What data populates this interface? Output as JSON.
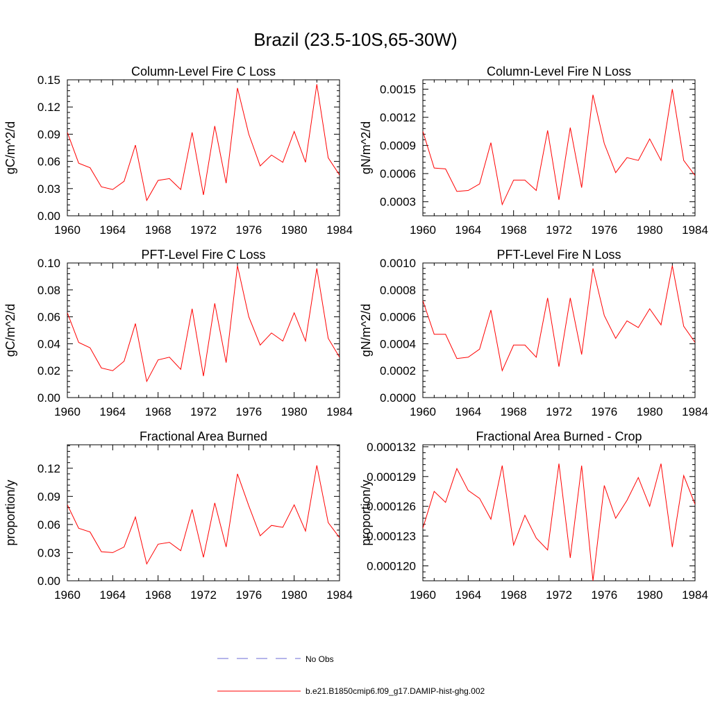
{
  "page_title": "Brazil (23.5-10S,65-30W)",
  "legend": {
    "obs_label": "No Obs",
    "model_label": "b.e21.B1850cmip6.f09_g17.DAMIP-hist-ghg.002",
    "obs_color": "#6b6bd6",
    "model_color": "#ff0000"
  },
  "chart_data": [
    {
      "type": "line",
      "title": "Column-Level Fire C Loss",
      "ylabel": "gC/m^2/d",
      "xlim": [
        1960,
        1984
      ],
      "ylim": [
        0,
        0.15
      ],
      "xticks": [
        "1960",
        "1964",
        "1968",
        "1972",
        "1976",
        "1980",
        "1984"
      ],
      "yticks": [
        "0.00",
        "0.03",
        "0.06",
        "0.09",
        "0.12",
        "0.15"
      ],
      "x": [
        1960,
        1961,
        1962,
        1963,
        1964,
        1965,
        1966,
        1967,
        1968,
        1969,
        1970,
        1971,
        1972,
        1973,
        1974,
        1975,
        1976,
        1977,
        1978,
        1979,
        1980,
        1981,
        1982,
        1983,
        1984
      ],
      "series": [
        {
          "name": "b.e21.B1850cmip6.f09_g17.DAMIP-hist-ghg.002",
          "values": [
            0.092,
            0.058,
            0.053,
            0.032,
            0.029,
            0.038,
            0.078,
            0.017,
            0.039,
            0.041,
            0.029,
            0.092,
            0.023,
            0.099,
            0.036,
            0.141,
            0.09,
            0.055,
            0.067,
            0.059,
            0.093,
            0.059,
            0.145,
            0.064,
            0.045
          ]
        }
      ]
    },
    {
      "type": "line",
      "title": "Column-Level Fire N Loss",
      "ylabel": "gN/m^2/d",
      "xlim": [
        1960,
        1984
      ],
      "ylim": [
        0.00015,
        0.0016
      ],
      "xticks": [
        "1960",
        "1964",
        "1968",
        "1972",
        "1976",
        "1980",
        "1984"
      ],
      "yticks": [
        "0.0003",
        "0.0006",
        "0.0009",
        "0.0012",
        "0.0015"
      ],
      "x": [
        1960,
        1961,
        1962,
        1963,
        1964,
        1965,
        1966,
        1967,
        1968,
        1969,
        1970,
        1971,
        1972,
        1973,
        1974,
        1975,
        1976,
        1977,
        1978,
        1979,
        1980,
        1981,
        1982,
        1983,
        1984
      ],
      "series": [
        {
          "name": "b.e21.B1850cmip6.f09_g17.DAMIP-hist-ghg.002",
          "values": [
            0.00105,
            0.00066,
            0.00065,
            0.00041,
            0.00042,
            0.00049,
            0.00093,
            0.00027,
            0.00053,
            0.00053,
            0.00042,
            0.00106,
            0.00032,
            0.00109,
            0.00045,
            0.00144,
            0.00092,
            0.00061,
            0.00077,
            0.00074,
            0.00097,
            0.00074,
            0.0015,
            0.00074,
            0.00058
          ]
        }
      ]
    },
    {
      "type": "line",
      "title": "PFT-Level Fire C Loss",
      "ylabel": "gC/m^2/d",
      "xlim": [
        1960,
        1984
      ],
      "ylim": [
        0,
        0.1
      ],
      "xticks": [
        "1960",
        "1964",
        "1968",
        "1972",
        "1976",
        "1980",
        "1984"
      ],
      "yticks": [
        "0.00",
        "0.02",
        "0.04",
        "0.06",
        "0.08",
        "0.10"
      ],
      "x": [
        1960,
        1961,
        1962,
        1963,
        1964,
        1965,
        1966,
        1967,
        1968,
        1969,
        1970,
        1971,
        1972,
        1973,
        1974,
        1975,
        1976,
        1977,
        1978,
        1979,
        1980,
        1981,
        1982,
        1983,
        1984
      ],
      "series": [
        {
          "name": "b.e21.B1850cmip6.f09_g17.DAMIP-hist-ghg.002",
          "values": [
            0.063,
            0.041,
            0.037,
            0.022,
            0.02,
            0.027,
            0.055,
            0.012,
            0.028,
            0.03,
            0.021,
            0.066,
            0.016,
            0.07,
            0.026,
            0.098,
            0.06,
            0.039,
            0.048,
            0.042,
            0.063,
            0.042,
            0.096,
            0.044,
            0.03
          ]
        }
      ]
    },
    {
      "type": "line",
      "title": "PFT-Level Fire N Loss",
      "ylabel": "gN/m^2/d",
      "xlim": [
        1960,
        1984
      ],
      "ylim": [
        0,
        0.001
      ],
      "xticks": [
        "1960",
        "1964",
        "1968",
        "1972",
        "1976",
        "1980",
        "1984"
      ],
      "yticks": [
        "0.0000",
        "0.0002",
        "0.0004",
        "0.0006",
        "0.0008",
        "0.0010"
      ],
      "x": [
        1960,
        1961,
        1962,
        1963,
        1964,
        1965,
        1966,
        1967,
        1968,
        1969,
        1970,
        1971,
        1972,
        1973,
        1974,
        1975,
        1976,
        1977,
        1978,
        1979,
        1980,
        1981,
        1982,
        1983,
        1984
      ],
      "series": [
        {
          "name": "b.e21.B1850cmip6.f09_g17.DAMIP-hist-ghg.002",
          "values": [
            0.00072,
            0.00047,
            0.00047,
            0.00029,
            0.0003,
            0.00036,
            0.00065,
            0.0002,
            0.00039,
            0.00039,
            0.0003,
            0.00074,
            0.00023,
            0.00074,
            0.00032,
            0.00096,
            0.00061,
            0.00044,
            0.00057,
            0.00052,
            0.00066,
            0.00054,
            0.00098,
            0.00053,
            0.00041
          ]
        }
      ]
    },
    {
      "type": "line",
      "title": "Fractional Area Burned",
      "ylabel": "proportion/y",
      "xlim": [
        1960,
        1984
      ],
      "ylim": [
        0,
        0.145
      ],
      "xticks": [
        "1960",
        "1964",
        "1968",
        "1972",
        "1976",
        "1980",
        "1984"
      ],
      "yticks": [
        "0.00",
        "0.03",
        "0.06",
        "0.09",
        "0.12"
      ],
      "x": [
        1960,
        1961,
        1962,
        1963,
        1964,
        1965,
        1966,
        1967,
        1968,
        1969,
        1970,
        1971,
        1972,
        1973,
        1974,
        1975,
        1976,
        1977,
        1978,
        1979,
        1980,
        1981,
        1982,
        1983,
        1984
      ],
      "series": [
        {
          "name": "b.e21.B1850cmip6.f09_g17.DAMIP-hist-ghg.002",
          "values": [
            0.081,
            0.056,
            0.052,
            0.031,
            0.03,
            0.036,
            0.068,
            0.018,
            0.039,
            0.041,
            0.032,
            0.076,
            0.025,
            0.083,
            0.036,
            0.114,
            0.08,
            0.048,
            0.059,
            0.057,
            0.081,
            0.053,
            0.123,
            0.062,
            0.046
          ]
        }
      ]
    },
    {
      "type": "line",
      "title": "Fractional Area Burned - Crop",
      "ylabel": "proportion/y",
      "xlim": [
        1960,
        1984
      ],
      "ylim": [
        0.0001185,
        0.0001322
      ],
      "xticks": [
        "1960",
        "1964",
        "1968",
        "1972",
        "1976",
        "1980",
        "1984"
      ],
      "yticks": [
        "0.000120",
        "0.000123",
        "0.000126",
        "0.000129",
        "0.000132"
      ],
      "x": [
        1960,
        1961,
        1962,
        1963,
        1964,
        1965,
        1966,
        1967,
        1968,
        1969,
        1970,
        1971,
        1972,
        1973,
        1974,
        1975,
        1976,
        1977,
        1978,
        1979,
        1980,
        1981,
        1982,
        1983,
        1984
      ],
      "series": [
        {
          "name": "b.e21.B1850cmip6.f09_g17.DAMIP-hist-ghg.002",
          "values": [
            0.0001238,
            0.0001275,
            0.0001264,
            0.0001298,
            0.0001276,
            0.0001268,
            0.0001247,
            0.0001301,
            0.0001221,
            0.0001251,
            0.0001228,
            0.0001216,
            0.0001303,
            0.0001208,
            0.0001301,
            0.0001185,
            0.0001281,
            0.0001248,
            0.0001266,
            0.0001289,
            0.000126,
            0.0001303,
            0.0001219,
            0.0001291,
            0.0001262
          ]
        }
      ]
    }
  ]
}
